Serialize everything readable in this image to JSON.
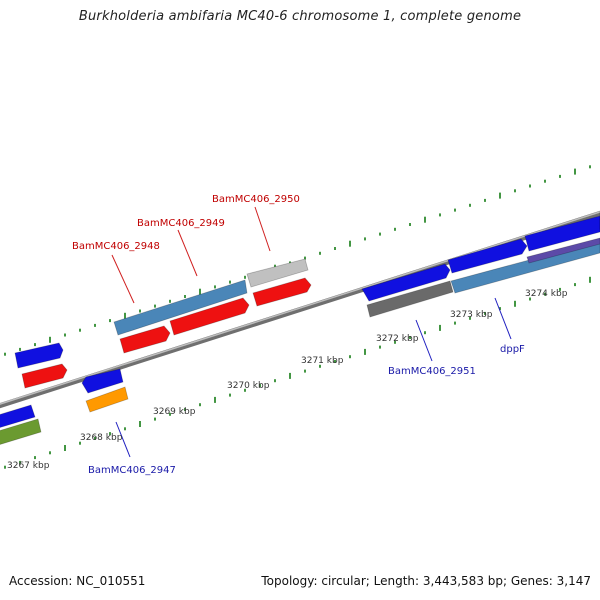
{
  "title": "Burkholderia ambifaria MC40-6 chromosome 1, complete genome",
  "footer": {
    "accession": "Accession: NC_010551",
    "summary": "Topology: circular; Length: 3,443,583 bp; Genes: 3,147"
  },
  "colors": {
    "backbone": "#8c8c8c",
    "tick": "#2e8b2e",
    "forward_label": "#c00000",
    "reverse_label": "#1a1aa8",
    "kbp_label": "#333333",
    "leader_forward": "#d02020",
    "leader_reverse": "#2020c0"
  },
  "kbp_labels": [
    "3267 kbp",
    "3268 kbp",
    "3269 kbp",
    "3270 kbp",
    "3271 kbp",
    "3272 kbp",
    "3273 kbp",
    "3274 kbp"
  ],
  "forward_gene_labels": [
    "BamMC406_2948",
    "BamMC406_2949",
    "BamMC406_2950"
  ],
  "reverse_gene_labels": [
    "BamMC406_2947",
    "BamMC406_2951",
    "dppF"
  ],
  "features": [
    {
      "strand": "forward",
      "track": "gene",
      "color": "#1010e0"
    },
    {
      "strand": "forward",
      "track": "cds",
      "color": "#ee1111"
    },
    {
      "strand": "forward",
      "track": "gene",
      "color": "#4a86b8"
    },
    {
      "strand": "forward",
      "track": "cds",
      "color": "#ee1111"
    },
    {
      "strand": "forward",
      "track": "cds",
      "color": "#ee1111"
    },
    {
      "strand": "forward",
      "track": "gene",
      "color": "#c0c0c0"
    },
    {
      "strand": "forward",
      "track": "cds",
      "color": "#ee1111"
    },
    {
      "strand": "forward",
      "track": "gene",
      "color": "#1010e0"
    },
    {
      "strand": "forward",
      "track": "gene",
      "color": "#1010e0"
    },
    {
      "strand": "forward",
      "track": "gene",
      "color": "#1010e0"
    },
    {
      "strand": "forward",
      "track": "gene",
      "color": "#1010e0"
    },
    {
      "strand": "forward",
      "track": "cds",
      "color": "#4a86b8"
    },
    {
      "strand": "forward",
      "track": "cds",
      "color": "#5c4aa8"
    },
    {
      "strand": "reverse",
      "track": "gene",
      "color": "#1010e0"
    },
    {
      "strand": "reverse",
      "track": "gene",
      "color": "#1010e0"
    },
    {
      "strand": "reverse",
      "track": "cds",
      "color": "#ff9900"
    },
    {
      "strand": "reverse",
      "track": "cds",
      "color": "#6b9a30"
    },
    {
      "strand": "reverse",
      "track": "cds",
      "color": "#6a6a6a"
    }
  ]
}
